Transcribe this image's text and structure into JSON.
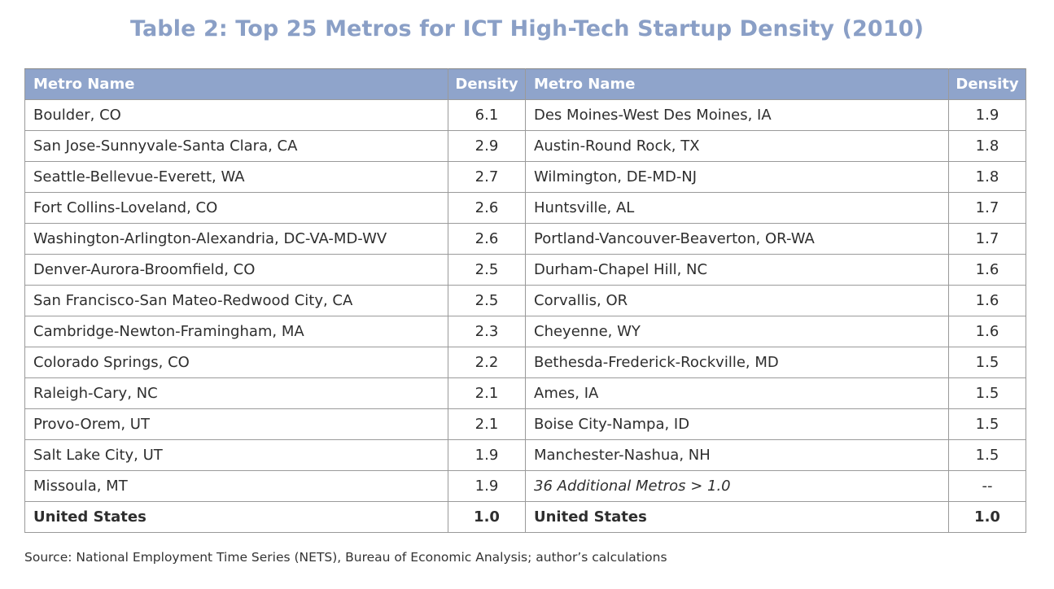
{
  "title": "Table 2: Top 25 Metros for ICT High-Tech Startup Density (2010)",
  "headers": {
    "metro_name_left": "Metro Name",
    "density_left": "Density",
    "metro_name_right": "Metro Name",
    "density_right": "Density"
  },
  "rows": [
    {
      "left_metro": "Boulder, CO",
      "left_density": "6.1",
      "right_metro": "Des Moines-West Des Moines, IA",
      "right_density": "1.9"
    },
    {
      "left_metro": "San Jose-Sunnyvale-Santa Clara, CA",
      "left_density": "2.9",
      "right_metro": "Austin-Round Rock, TX",
      "right_density": "1.8"
    },
    {
      "left_metro": "Seattle-Bellevue-Everett, WA",
      "left_density": "2.7",
      "right_metro": "Wilmington, DE-MD-NJ",
      "right_density": "1.8"
    },
    {
      "left_metro": "Fort Collins-Loveland, CO",
      "left_density": "2.6",
      "right_metro": "Huntsville, AL",
      "right_density": "1.7"
    },
    {
      "left_metro": "Washington-Arlington-Alexandria, DC-VA-MD-WV",
      "left_density": "2.6",
      "right_metro": "Portland-Vancouver-Beaverton, OR-WA",
      "right_density": "1.7"
    },
    {
      "left_metro": "Denver-Aurora-Broomfield, CO",
      "left_density": "2.5",
      "right_metro": "Durham-Chapel Hill, NC",
      "right_density": "1.6"
    },
    {
      "left_metro": "San Francisco-San Mateo-Redwood City, CA",
      "left_density": "2.5",
      "right_metro": "Corvallis, OR",
      "right_density": "1.6"
    },
    {
      "left_metro": "Cambridge-Newton-Framingham, MA",
      "left_density": "2.3",
      "right_metro": "Cheyenne, WY",
      "right_density": "1.6"
    },
    {
      "left_metro": "Colorado Springs, CO",
      "left_density": "2.2",
      "right_metro": "Bethesda-Frederick-Rockville, MD",
      "right_density": "1.5"
    },
    {
      "left_metro": "Raleigh-Cary, NC",
      "left_density": "2.1",
      "right_metro": "Ames, IA",
      "right_density": "1.5"
    },
    {
      "left_metro": "Provo-Orem, UT",
      "left_density": "2.1",
      "right_metro": "Boise City-Nampa, ID",
      "right_density": "1.5"
    },
    {
      "left_metro": "Salt Lake City, UT",
      "left_density": "1.9",
      "right_metro": "Manchester-Nashua, NH",
      "right_density": "1.5"
    },
    {
      "left_metro": "Missoula, MT",
      "left_density": "1.9",
      "right_metro": "36 Additional Metros > 1.0",
      "right_density": "--"
    }
  ],
  "total_row": {
    "left_metro": "United States",
    "left_density": "1.0",
    "right_metro": "United States",
    "right_density": "1.0"
  },
  "source": "Source: National Employment Time Series (NETS), Bureau of Economic Analysis; author’s calculations"
}
